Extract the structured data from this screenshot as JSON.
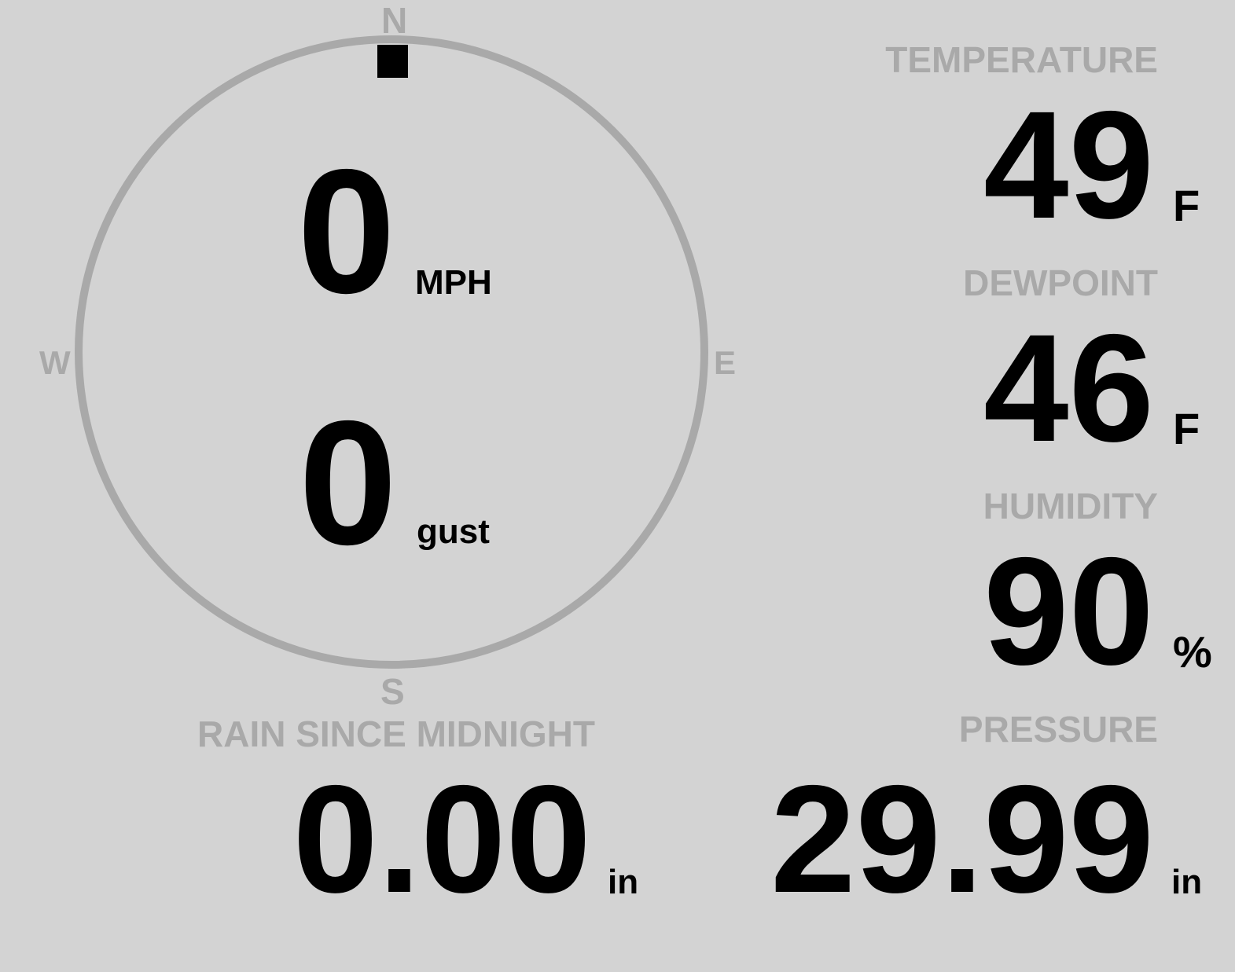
{
  "colors": {
    "background": "#d3d3d3",
    "muted": "#a9a9a9",
    "text": "#000000"
  },
  "compass": {
    "north": "N",
    "south": "S",
    "east": "E",
    "west": "W",
    "wind_direction_deg": 0
  },
  "wind": {
    "speed": "0",
    "speed_unit": "MPH",
    "gust": "0",
    "gust_unit": "gust"
  },
  "temperature": {
    "label": "TEMPERATURE",
    "value": "49",
    "unit": "F"
  },
  "dewpoint": {
    "label": "DEWPOINT",
    "value": "46",
    "unit": "F"
  },
  "humidity": {
    "label": "HUMIDITY",
    "value": "90",
    "unit": "%"
  },
  "pressure": {
    "label": "PRESSURE",
    "value": "29.99",
    "unit": "in"
  },
  "rain": {
    "label": "RAIN SINCE MIDNIGHT",
    "value": "0.00",
    "unit": "in"
  }
}
